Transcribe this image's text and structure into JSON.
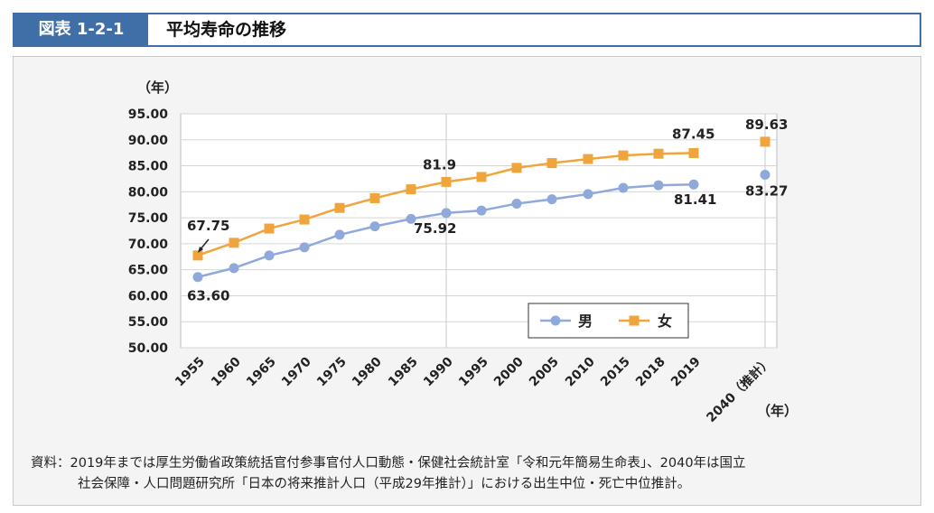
{
  "header": {
    "figure_number": "図表 1-2-1",
    "title": "平均寿命の推移"
  },
  "chart_data": {
    "type": "line",
    "ylabel": "（年）",
    "xlabel": "（年）",
    "ylim": [
      50,
      95
    ],
    "yticks": [
      "50.00",
      "55.00",
      "60.00",
      "65.00",
      "70.00",
      "75.00",
      "80.00",
      "85.00",
      "90.00",
      "95.00"
    ],
    "categories": [
      "1955",
      "1960",
      "1965",
      "1970",
      "1975",
      "1980",
      "1985",
      "1990",
      "1995",
      "2000",
      "2005",
      "2010",
      "2015",
      "2018",
      "2019",
      "2040（推計）"
    ],
    "series": [
      {
        "name": "男",
        "color": "#8fa9db",
        "values": [
          63.6,
          65.32,
          67.74,
          69.31,
          71.73,
          73.35,
          74.78,
          75.92,
          76.38,
          77.72,
          78.56,
          79.55,
          80.75,
          81.25,
          81.41,
          83.27
        ]
      },
      {
        "name": "女",
        "color": "#f0a53c",
        "values": [
          67.75,
          70.19,
          72.92,
          74.66,
          76.89,
          78.76,
          80.48,
          81.9,
          82.85,
          84.6,
          85.52,
          86.3,
          86.99,
          87.32,
          87.45,
          89.63
        ]
      }
    ],
    "data_labels": [
      {
        "series": 0,
        "index": 0,
        "text": "63.60"
      },
      {
        "series": 1,
        "index": 0,
        "text": "67.75"
      },
      {
        "series": 0,
        "index": 7,
        "text": "75.92"
      },
      {
        "series": 1,
        "index": 7,
        "text": "81.9"
      },
      {
        "series": 0,
        "index": 14,
        "text": "81.41"
      },
      {
        "series": 1,
        "index": 14,
        "text": "87.45"
      },
      {
        "series": 0,
        "index": 15,
        "text": "83.27"
      },
      {
        "series": 1,
        "index": 15,
        "text": "89.63"
      }
    ],
    "grid": true,
    "legend": "bottom-right"
  },
  "source": {
    "line1": "資料：2019年までは厚生労働省政策統括官付参事官付人口動態・保健社会統計室「令和元年簡易生命表」、2040年は国立",
    "line2": "社会保障・人口問題研究所「日本の将来推計人口（平成29年推計）」における出生中位・死亡中位推計。"
  }
}
